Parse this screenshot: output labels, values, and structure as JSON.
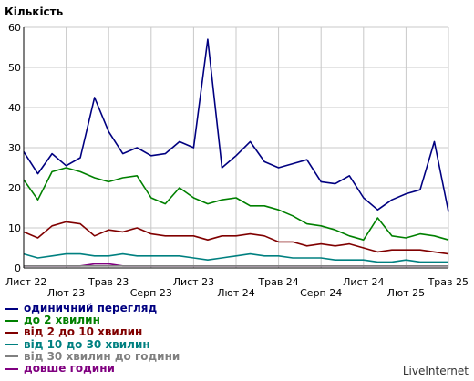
{
  "chart_data": {
    "type": "line",
    "ylabel": "Кількість",
    "xlabel": "",
    "ylim": [
      0,
      60
    ],
    "yticks": [
      0,
      10,
      20,
      30,
      40,
      50,
      60
    ],
    "grid": true,
    "legend_position": "bottom-left",
    "x_tick_labels": [
      {
        "label": "Лист 22",
        "row": 0
      },
      {
        "label": "Лют 23",
        "row": 1
      },
      {
        "label": "Трав 23",
        "row": 0
      },
      {
        "label": "Серп 23",
        "row": 1
      },
      {
        "label": "Лист 23",
        "row": 0
      },
      {
        "label": "Лют 24",
        "row": 1
      },
      {
        "label": "Трав 24",
        "row": 0
      },
      {
        "label": "Серп 24",
        "row": 1
      },
      {
        "label": "Лист 24",
        "row": 0
      },
      {
        "label": "Лют 25",
        "row": 1
      },
      {
        "label": "Трав 25",
        "row": 0
      }
    ],
    "x_tick_positions": [
      0,
      3,
      6,
      9,
      12,
      15,
      18,
      21,
      24,
      27,
      30
    ],
    "x": [
      "Лист 22",
      "Груд 22",
      "Січ 23",
      "Лют 23",
      "Бер 23",
      "Квіт 23",
      "Трав 23",
      "Черв 23",
      "Лип 23",
      "Серп 23",
      "Вер 23",
      "Жовт 23",
      "Лист 23",
      "Груд 23",
      "Січ 24",
      "Лют 24",
      "Бер 24",
      "Квіт 24",
      "Трав 24",
      "Черв 24",
      "Лип 24",
      "Серп 24",
      "Вер 24",
      "Жовт 24",
      "Лист 24",
      "Груд 24",
      "Січ 25",
      "Лют 25",
      "Бер 25",
      "Квіт 25",
      "Трав 25"
    ],
    "series": [
      {
        "name": "одиничний перегляд",
        "color": "#000080",
        "values": [
          29,
          23.5,
          28.5,
          25.5,
          27.5,
          42.5,
          34,
          28.5,
          30,
          28,
          28.5,
          31.5,
          30,
          57,
          25,
          28,
          31.5,
          26.5,
          25,
          26,
          27,
          21.5,
          21,
          23,
          17.5,
          14.5,
          17,
          18.5,
          19.5,
          31.5,
          14
        ]
      },
      {
        "name": "до 2 хвилин",
        "color": "#008000",
        "values": [
          22,
          17,
          24,
          25,
          24,
          22.5,
          21.5,
          22.5,
          23,
          17.5,
          16,
          20,
          17.5,
          16,
          17,
          17.5,
          15.5,
          15.5,
          14.5,
          13,
          11,
          10.5,
          9.5,
          8,
          7,
          12.5,
          8,
          7.5,
          8.5,
          8,
          7
        ]
      },
      {
        "name": "від 2 до 10 хвилин",
        "color": "#800000",
        "values": [
          9,
          7.5,
          10.5,
          11.5,
          11,
          8,
          9.5,
          9,
          10,
          8.5,
          8,
          8,
          8,
          7,
          8,
          8,
          8.5,
          8,
          6.5,
          6.5,
          5.5,
          6,
          5.5,
          6,
          5,
          4,
          4.5,
          4.5,
          4.5,
          4,
          3.5
        ]
      },
      {
        "name": "від 10 до 30 хвилин",
        "color": "#008080",
        "values": [
          3.5,
          2.5,
          3,
          3.5,
          3.5,
          3,
          3,
          3.5,
          3,
          3,
          3,
          3,
          2.5,
          2,
          2.5,
          3,
          3.5,
          3,
          3,
          2.5,
          2.5,
          2.5,
          2,
          2,
          2,
          1.5,
          1.5,
          2,
          1.5,
          1.5,
          1.5
        ]
      },
      {
        "name": "від 30 хвилин до години",
        "color": "#808080",
        "values": [
          0.5,
          0.5,
          0.5,
          0.5,
          0.5,
          0.5,
          0.5,
          0.5,
          0.5,
          0.5,
          0.5,
          0.5,
          0.5,
          0.5,
          0.5,
          0.5,
          0.5,
          0.5,
          0.5,
          0.5,
          0.5,
          0.5,
          0.5,
          0.5,
          0.5,
          0.5,
          0.5,
          0.5,
          0.5,
          0.5,
          0.5
        ]
      },
      {
        "name": "довше години",
        "color": "#800080",
        "values": [
          0.5,
          0.5,
          0.5,
          0.5,
          0.5,
          1,
          1,
          0.5,
          0.5,
          0.5,
          0.5,
          0.5,
          0.5,
          0.5,
          0.5,
          0.5,
          0.5,
          0.5,
          0.5,
          0.5,
          0.5,
          0.5,
          0.5,
          0.5,
          0.5,
          0.5,
          0.5,
          0.5,
          0.5,
          0.5,
          0.5
        ]
      }
    ]
  },
  "footer": {
    "brand": "LiveInternet"
  }
}
